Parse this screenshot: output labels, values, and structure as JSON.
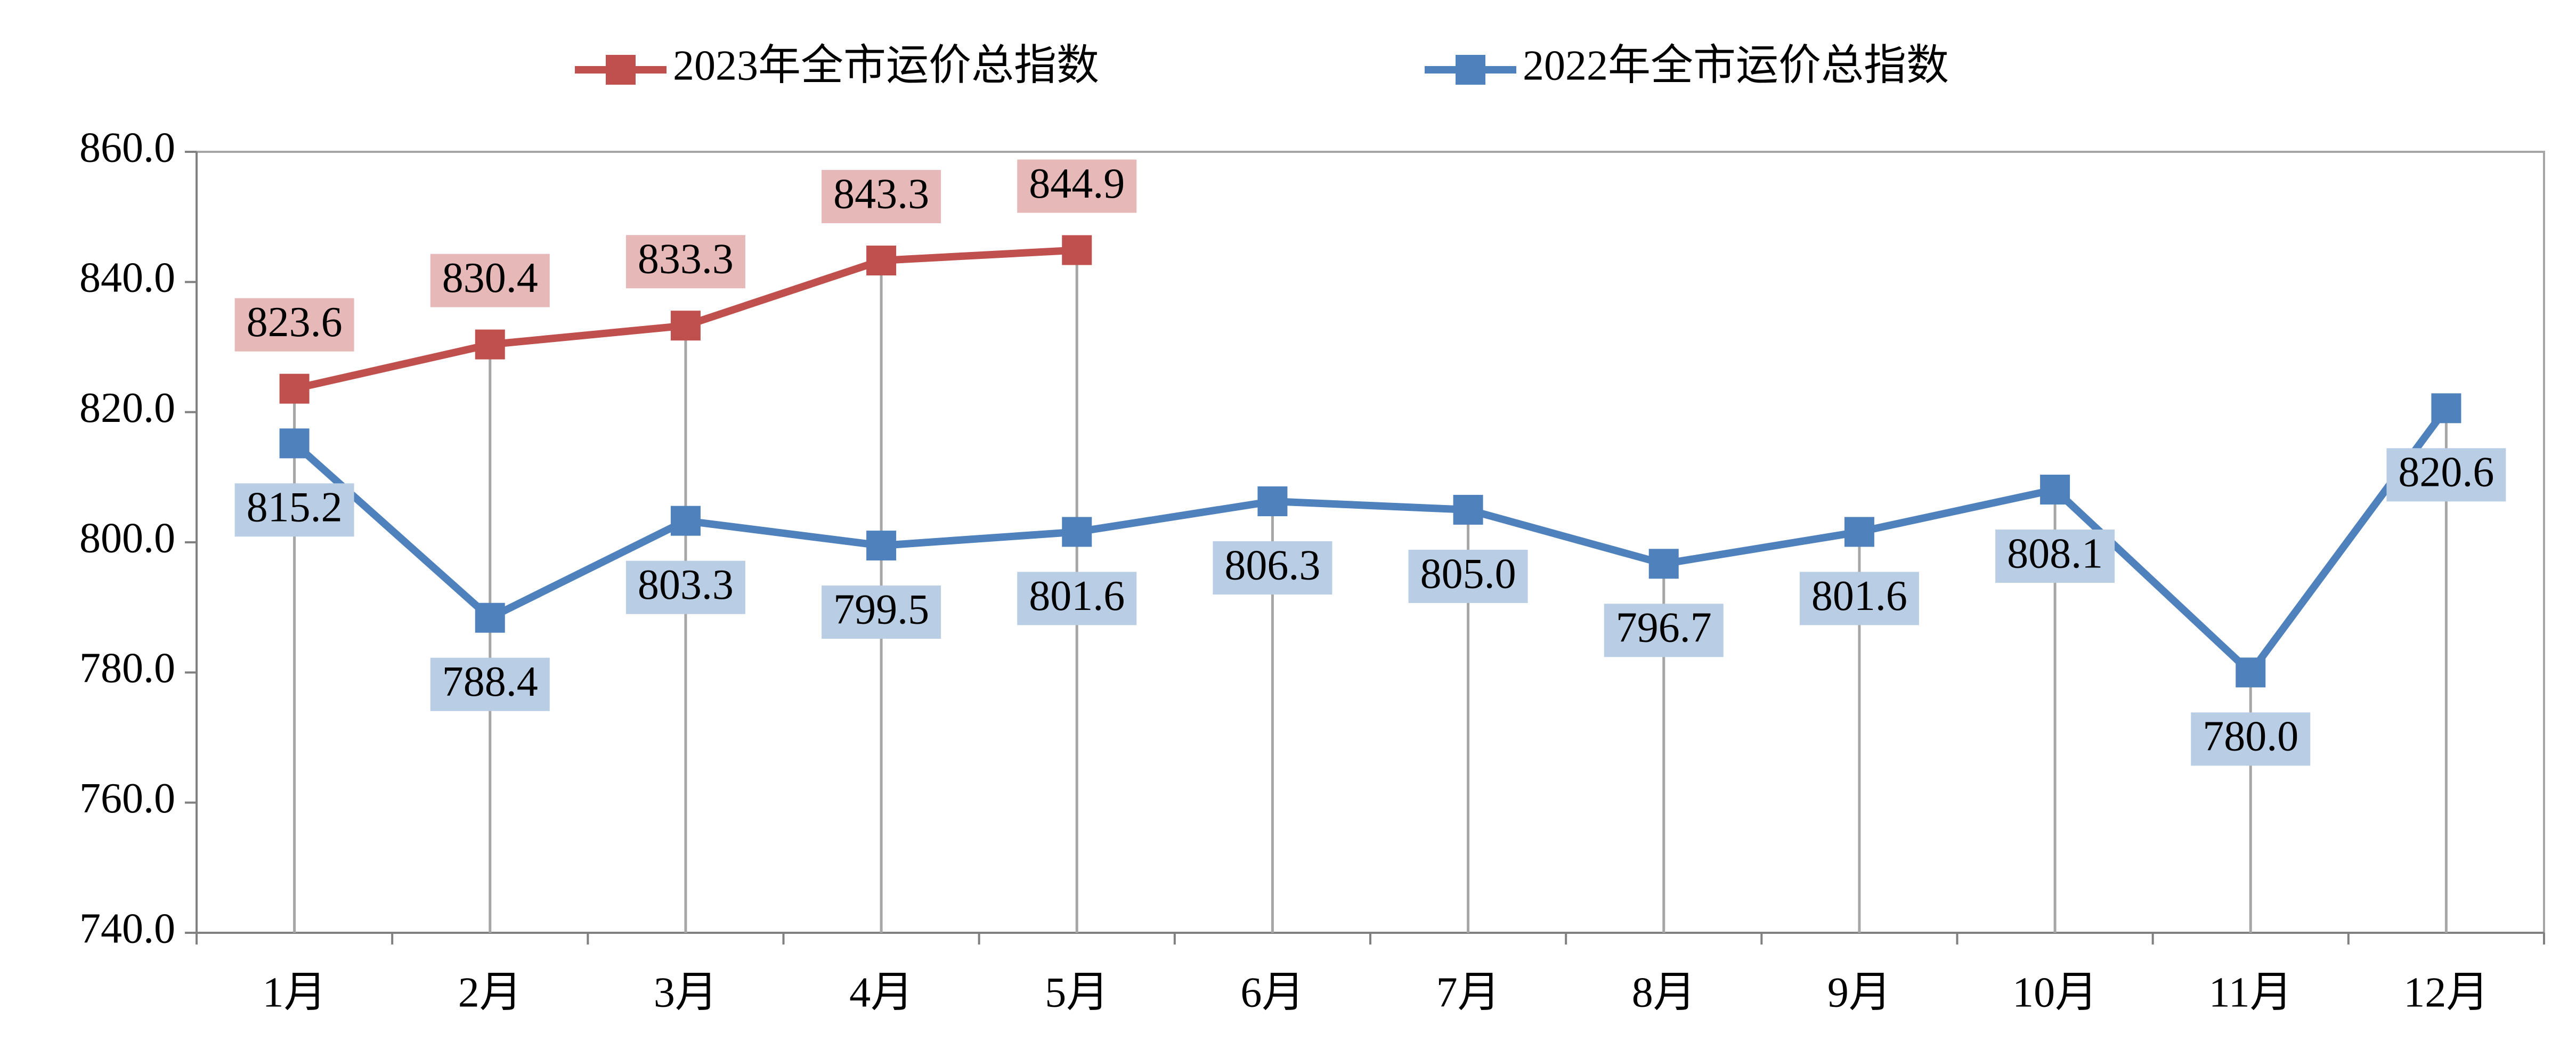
{
  "chart_data": {
    "type": "line",
    "categories": [
      "1月",
      "2月",
      "3月",
      "4月",
      "5月",
      "6月",
      "7月",
      "8月",
      "9月",
      "10月",
      "11月",
      "12月"
    ],
    "series": [
      {
        "name": "2023年全市运价总指数",
        "color": "#c0504d",
        "label_color": "#e6b9b8",
        "label_position": "above",
        "values": [
          823.6,
          830.4,
          833.3,
          843.3,
          844.9,
          null,
          null,
          null,
          null,
          null,
          null,
          null
        ],
        "value_labels": [
          "823.6",
          "830.4",
          "833.3",
          "843.3",
          "844.9",
          null,
          null,
          null,
          null,
          null,
          null,
          null
        ]
      },
      {
        "name": "2022年全市运价总指数",
        "color": "#4f81bd",
        "label_color": "#b9cde5",
        "label_position": "below",
        "values": [
          815.2,
          788.4,
          803.3,
          799.5,
          801.6,
          806.3,
          805.0,
          796.7,
          801.6,
          808.1,
          780.0,
          820.6
        ],
        "value_labels": [
          "815.2",
          "788.4",
          "803.3",
          "799.5",
          "801.6",
          "806.3",
          "805.0",
          "796.7",
          "801.6",
          "808.1",
          "780.0",
          "820.6"
        ]
      }
    ],
    "ylim": [
      740,
      860
    ],
    "yticks": [
      {
        "value": 740,
        "label": "740.0"
      },
      {
        "value": 760,
        "label": "760.0"
      },
      {
        "value": 780,
        "label": "780.0"
      },
      {
        "value": 800,
        "label": "800.0"
      },
      {
        "value": 820,
        "label": "820.0"
      },
      {
        "value": 840,
        "label": "840.0"
      },
      {
        "value": 860,
        "label": "860.0"
      }
    ],
    "drop_lines": true,
    "legend": "top"
  }
}
